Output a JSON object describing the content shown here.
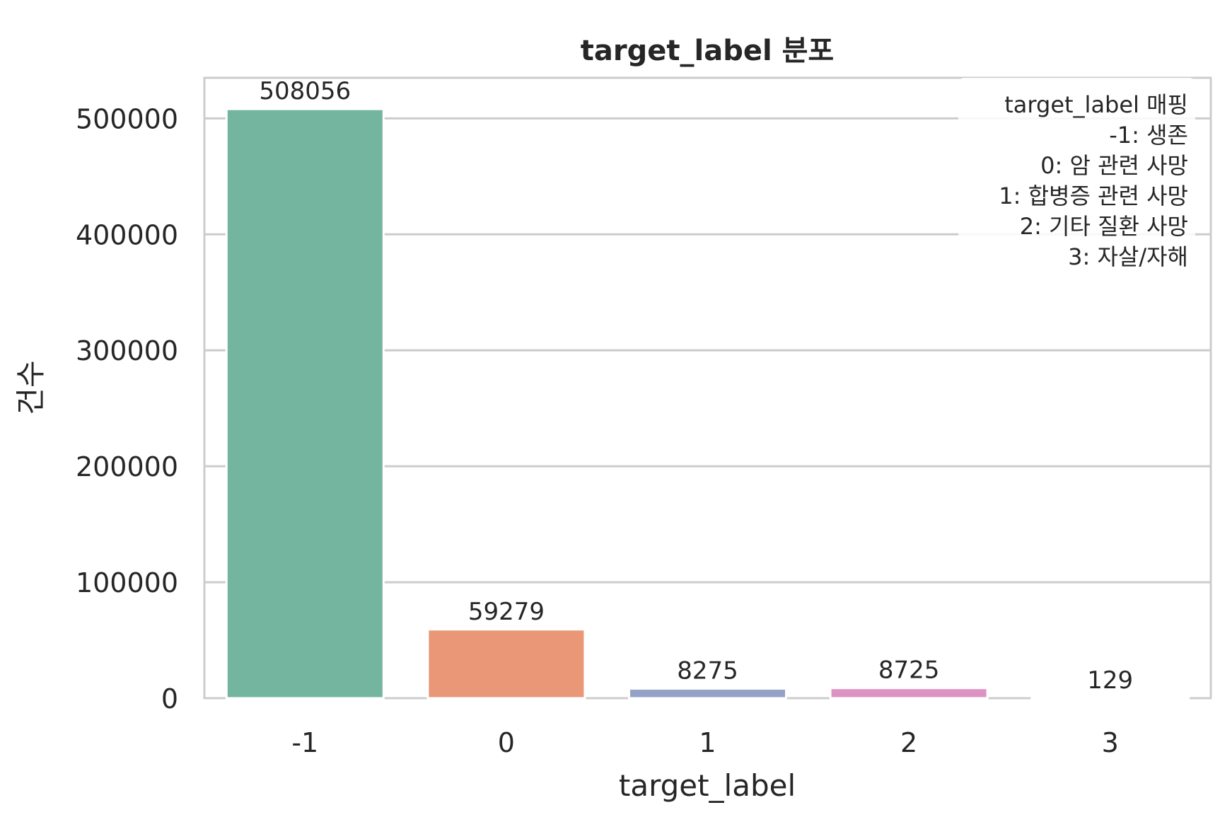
{
  "chart_data": {
    "type": "bar",
    "title": "target_label 분포",
    "xlabel": "target_label",
    "ylabel": "건수",
    "categories": [
      "-1",
      "0",
      "1",
      "2",
      "3"
    ],
    "values": [
      508056,
      59279,
      8275,
      8725,
      129
    ],
    "value_labels": [
      "508056",
      "59279",
      "8275",
      "8725",
      "129"
    ],
    "colors": [
      "#73b59f",
      "#e99777",
      "#93a2c6",
      "#dc93c3",
      "#a8cf6a"
    ],
    "ylim": [
      0,
      535000
    ],
    "yticks": [
      0,
      100000,
      200000,
      300000,
      400000,
      500000
    ],
    "ytick_labels": [
      "0",
      "100000",
      "200000",
      "300000",
      "400000",
      "500000"
    ],
    "grid": true,
    "legend": {
      "placement": "upper-right",
      "title": "target_label 매핑",
      "entries": [
        "-1: 생존",
        "0: 암 관련 사망",
        "1: 합병증 관련 사망",
        "2: 기타 질환 사망",
        "3: 자살/자해"
      ]
    }
  }
}
